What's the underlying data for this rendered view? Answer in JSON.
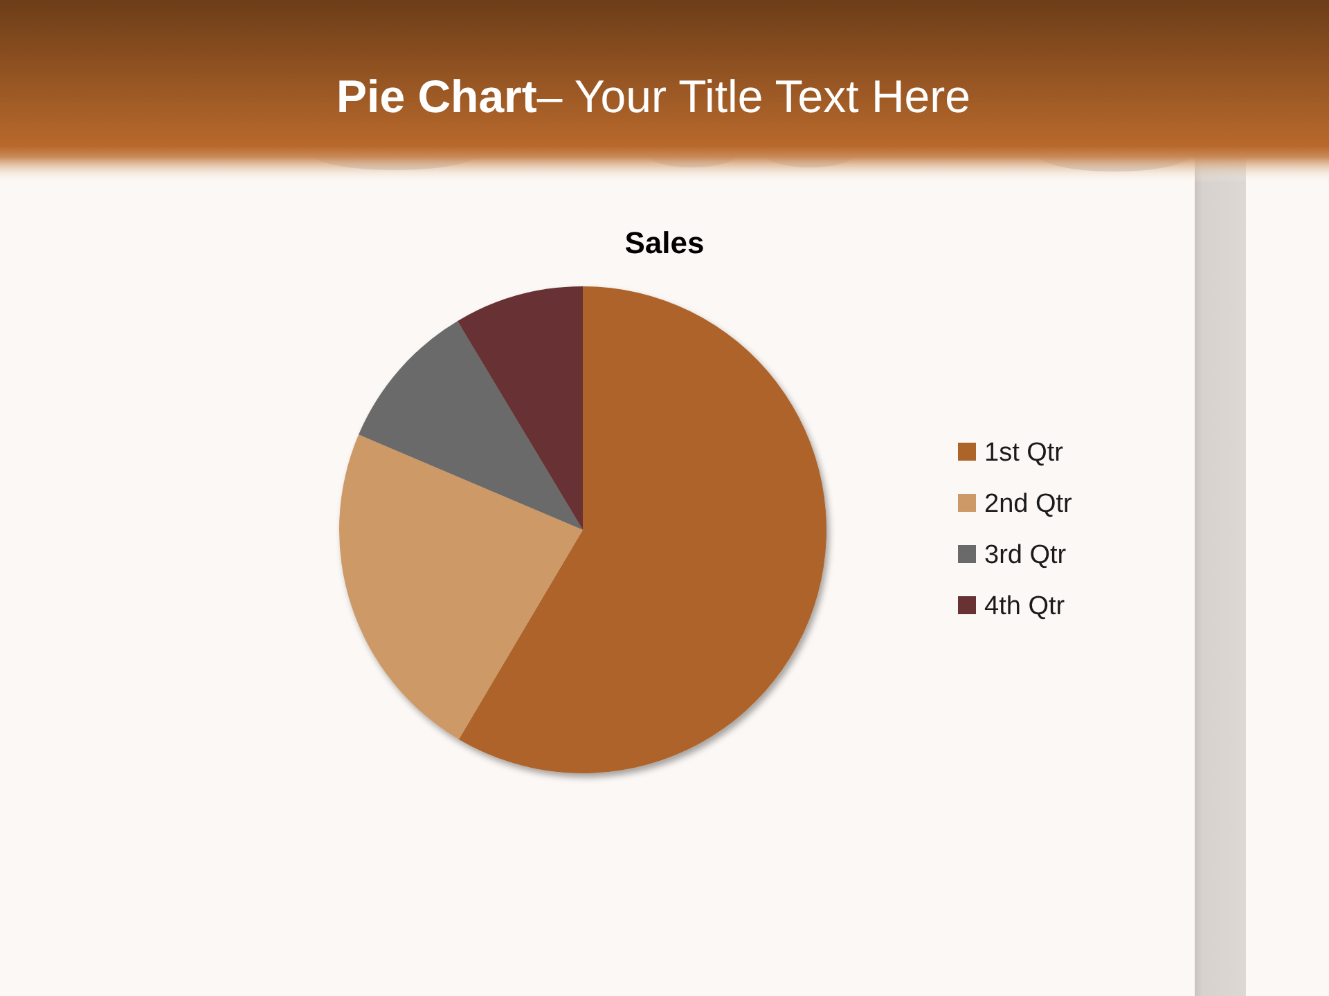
{
  "chart_data": {
    "type": "pie",
    "title": "Pie Chart– Your Title Text Here",
    "subtitle": "Sales",
    "categories": [
      "1st Qtr",
      "2nd Qtr",
      "3rd Qtr",
      "4th Qtr"
    ],
    "values": [
      58.5,
      22.9,
      10,
      8.6
    ],
    "colors": [
      "#ad6429",
      "#cd9966",
      "#6a6a6a",
      "#683234"
    ],
    "legend": "right"
  }
}
